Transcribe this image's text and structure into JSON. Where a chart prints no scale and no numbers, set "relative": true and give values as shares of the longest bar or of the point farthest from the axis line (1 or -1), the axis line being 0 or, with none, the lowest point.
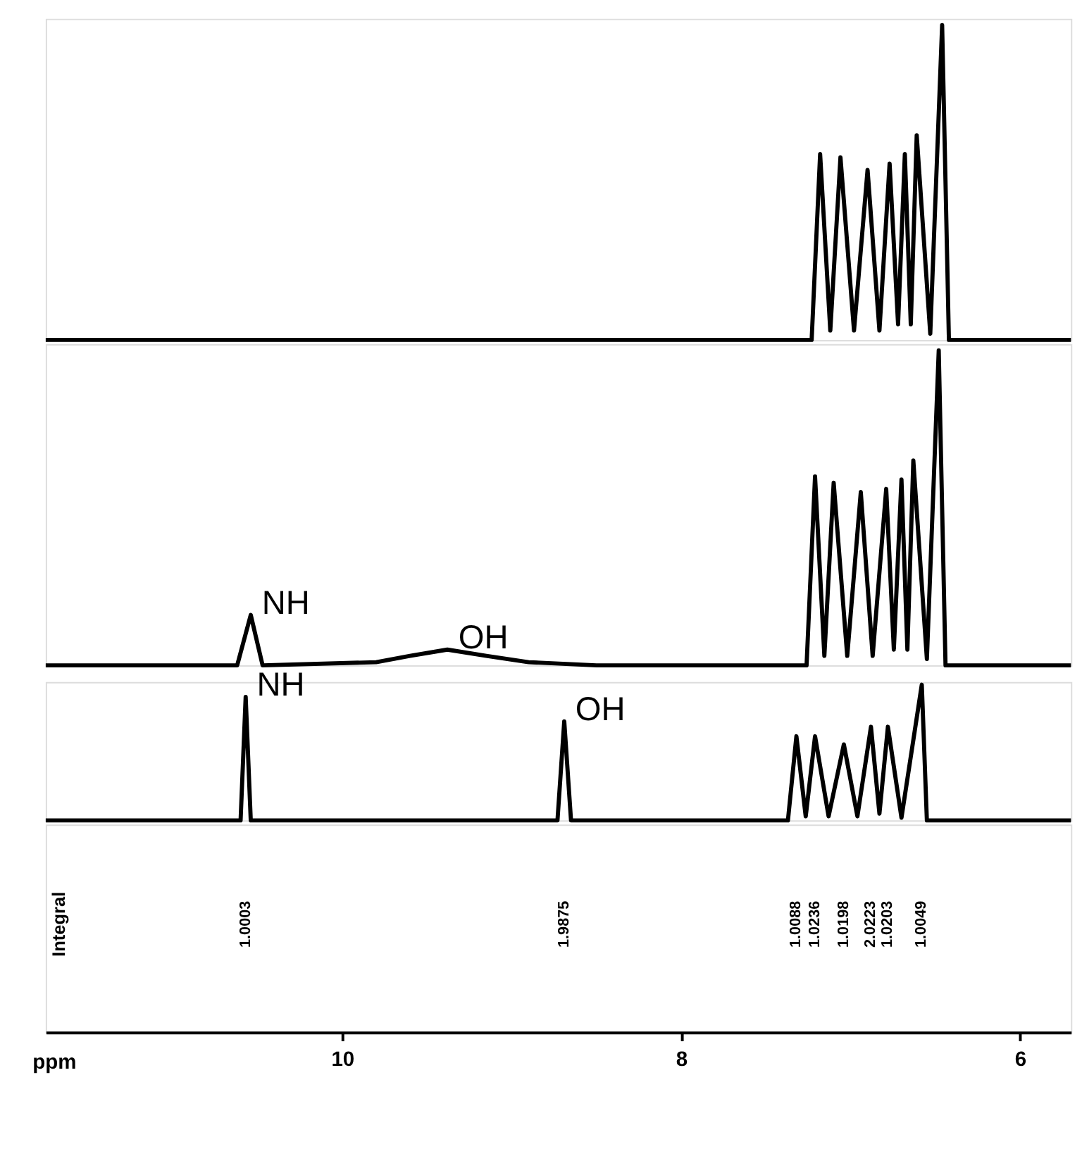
{
  "chart_data": [
    {
      "type": "line",
      "relative": true,
      "tick_labels": false,
      "xlim": [
        11.75,
        5.7
      ],
      "series": [
        {
          "color": "#000000",
          "x": [
            11.75,
            7.23,
            7.18,
            7.12,
            7.06,
            6.98,
            6.9,
            6.83,
            6.77,
            6.72,
            6.68,
            6.645,
            6.61,
            6.53,
            6.46,
            6.42,
            5.7
          ],
          "values": [
            0,
            0,
            0.59,
            0.03,
            0.58,
            0.03,
            0.54,
            0.03,
            0.56,
            0.05,
            0.59,
            0.05,
            0.65,
            0.02,
            1,
            0,
            0
          ]
        }
      ]
    },
    {
      "type": "line",
      "relative": true,
      "tick_labels": false,
      "xlim": [
        11.75,
        5.7
      ],
      "series": [
        {
          "color": "#000000",
          "x": [
            11.75,
            10.62,
            10.54,
            10.47,
            9.8,
            9.6,
            9.38,
            9.15,
            8.9,
            8.5,
            7.26,
            7.21,
            7.155,
            7.1,
            7.02,
            6.94,
            6.87,
            6.79,
            6.745,
            6.7,
            6.665,
            6.63,
            6.55,
            6.48,
            6.44,
            5.7
          ],
          "values": [
            0,
            0,
            0.16,
            0,
            0.01,
            0.03,
            0.05,
            0.03,
            0.01,
            0,
            0,
            0.6,
            0.03,
            0.58,
            0.03,
            0.55,
            0.03,
            0.56,
            0.05,
            0.59,
            0.05,
            0.65,
            0.02,
            1,
            0,
            0
          ]
        }
      ],
      "annotations": [
        {
          "text": "NH",
          "x": 10.54,
          "y": 0.16
        },
        {
          "text": "OH",
          "x": 9.38,
          "y": 0.05
        }
      ]
    },
    {
      "type": "line",
      "relative": true,
      "tick_labels": "x",
      "xlim": [
        11.75,
        5.7
      ],
      "xlabel": "ppm",
      "xticks": [
        10,
        8,
        6
      ],
      "series": [
        {
          "color": "#000000",
          "x": [
            11.75,
            10.6,
            10.57,
            10.54,
            8.73,
            8.69,
            8.65,
            7.37,
            7.32,
            7.265,
            7.21,
            7.13,
            7.04,
            6.96,
            6.88,
            6.83,
            6.78,
            6.7,
            6.58,
            6.55,
            5.7
          ],
          "values": [
            0,
            0,
            0.91,
            0,
            0,
            0.73,
            0,
            0,
            0.62,
            0.03,
            0.62,
            0.03,
            0.56,
            0.03,
            0.69,
            0.05,
            0.69,
            0.02,
            1,
            0,
            0
          ]
        }
      ],
      "annotations": [
        {
          "text": "NH",
          "x": 10.57,
          "y": 0.91
        },
        {
          "text": "OH",
          "x": 8.69,
          "y": 0.73
        },
        "Integral",
        "1.0003",
        "1.9875",
        "1.0088",
        "1.0236",
        "1.0198",
        "2.0223",
        "1.0203",
        "1.0049"
      ]
    }
  ]
}
